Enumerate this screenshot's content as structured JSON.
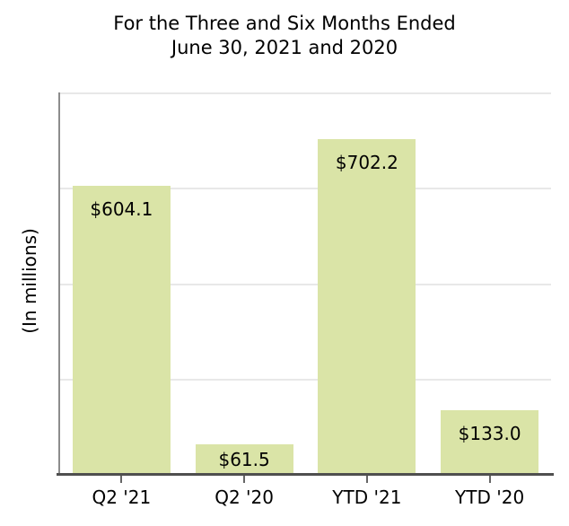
{
  "chart_data": {
    "type": "bar",
    "title": "For the Three and Six Months Ended June 30, 2021 and 2020",
    "title_lines": [
      "For the Three and Six Months Ended",
      "June 30, 2021 and 2020"
    ],
    "xlabel": "",
    "ylabel": "(In millions)",
    "categories": [
      "Q2 '21",
      "Q2 '20",
      "YTD '21",
      "YTD '20"
    ],
    "values": [
      604.1,
      61.5,
      702.2,
      133.0
    ],
    "value_labels": [
      "$604.1",
      "$61.5",
      "$702.2",
      "$133.0"
    ],
    "ylim": [
      0,
      800
    ],
    "gridline_step": 200,
    "grid": true,
    "y_tick_labels": [],
    "legend": null,
    "colors": {
      "bar_fill": "#dae4a7",
      "gridline": "#e8e8e8",
      "axis_line": "#4f4f4f",
      "spine": "#8c8c8c",
      "text": "#000000",
      "background": "#ffffff"
    }
  }
}
